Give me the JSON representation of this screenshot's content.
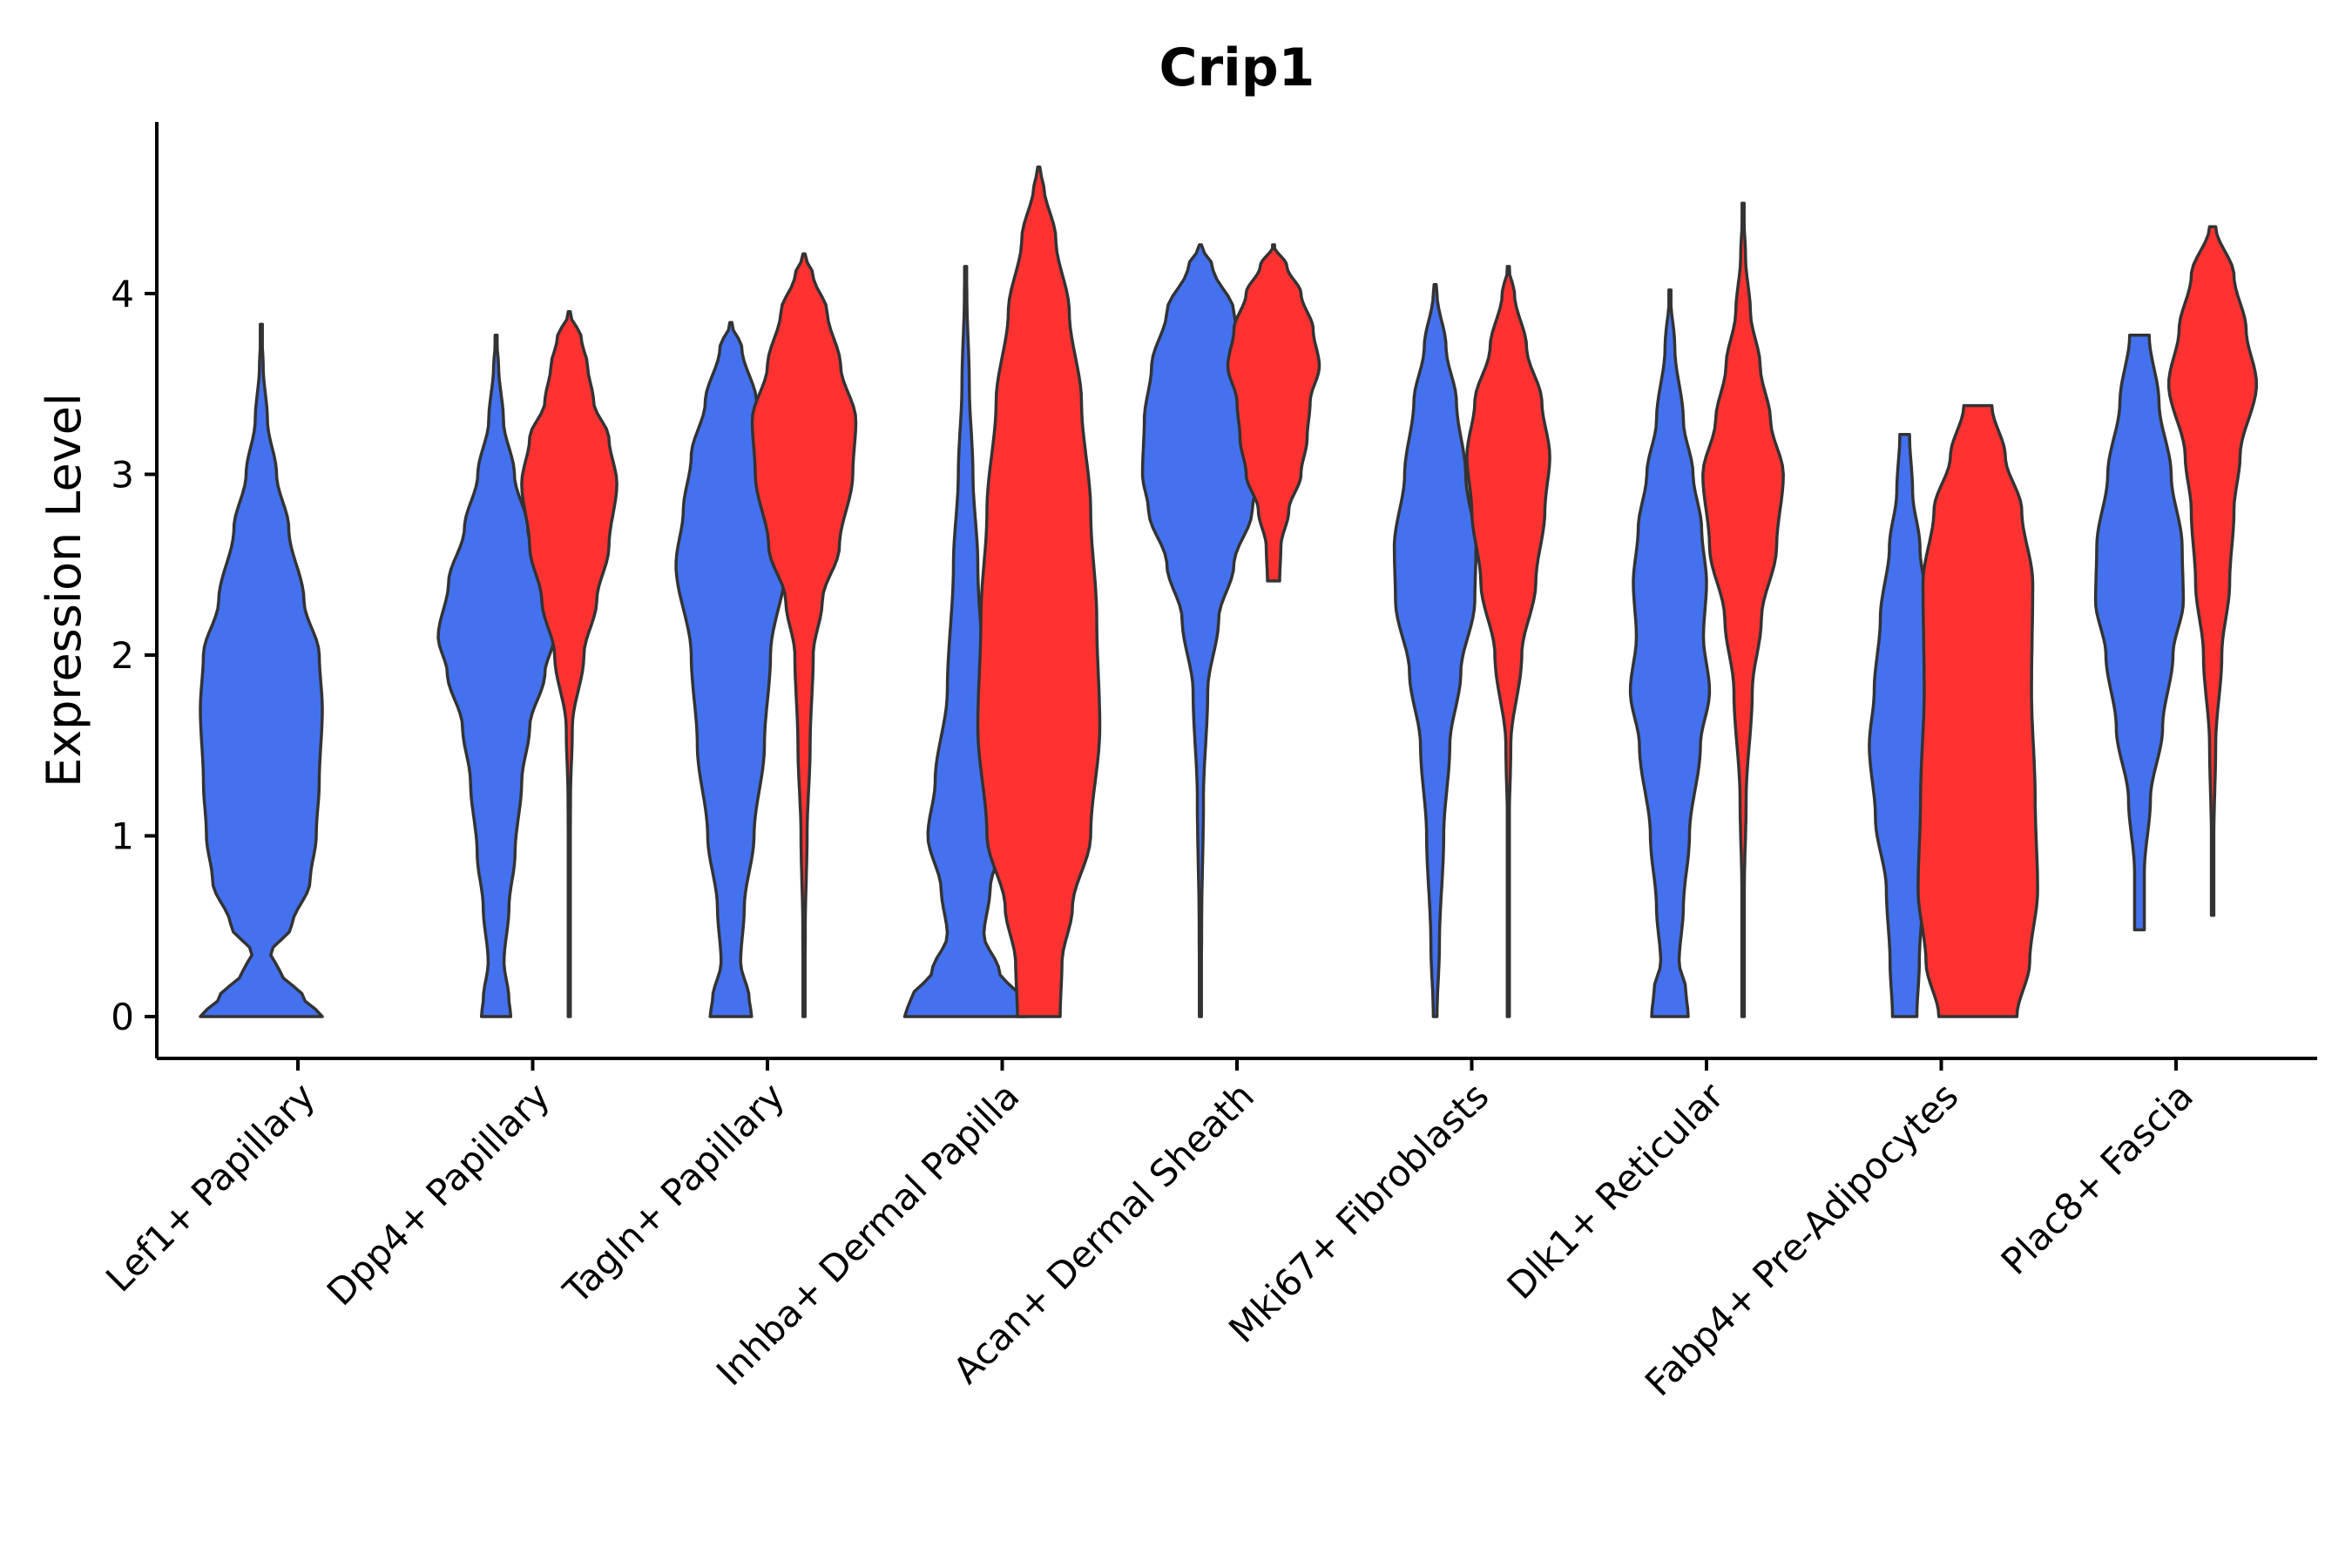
{
  "chart_data": {
    "type": "violin",
    "title": "Crip1",
    "xlabel": "",
    "ylabel": "Expression Level",
    "ylim": [
      -0.23,
      4.95
    ],
    "yticks": [
      0,
      1,
      2,
      3,
      4
    ],
    "grid": false,
    "legend": "none",
    "colors": {
      "group_a": "#4471EE",
      "group_b": "#FF3232",
      "outline": "#333333"
    },
    "categories": [
      "Lef1+ Papillary",
      "Dpp4+ Papillary",
      "Tagln+ Papillary",
      "Inhba+ Dermal Papilla",
      "Acan+ Dermal Sheath",
      "Mki67+ Fibroblasts",
      "Dlk1+ Reticular",
      "Fabp4+ Pre-Adipocytes",
      "Plac8+ Fascia"
    ],
    "series": [
      {
        "name": "Lef1+ Papillary A",
        "category_index": 0,
        "group": "a",
        "min": 0,
        "max": 3.83,
        "profile": [
          [
            0,
            1.0
          ],
          [
            0.1,
            0.7
          ],
          [
            0.25,
            0.3
          ],
          [
            0.35,
            0.15
          ],
          [
            0.5,
            0.5
          ],
          [
            0.75,
            0.8
          ],
          [
            1.0,
            0.9
          ],
          [
            1.3,
            0.95
          ],
          [
            1.7,
            1.0
          ],
          [
            2.0,
            0.95
          ],
          [
            2.3,
            0.7
          ],
          [
            2.7,
            0.45
          ],
          [
            3.0,
            0.25
          ],
          [
            3.3,
            0.1
          ],
          [
            3.6,
            0.03
          ],
          [
            3.83,
            0.0
          ]
        ]
      },
      {
        "name": "Dpp4+ Papillary A",
        "category_index": 1,
        "group": "a",
        "min": 0,
        "max": 3.77,
        "profile": [
          [
            0,
            0.24
          ],
          [
            0.1,
            0.21
          ],
          [
            0.3,
            0.13
          ],
          [
            0.6,
            0.21
          ],
          [
            0.9,
            0.31
          ],
          [
            1.3,
            0.42
          ],
          [
            1.6,
            0.55
          ],
          [
            1.9,
            0.8
          ],
          [
            2.1,
            0.95
          ],
          [
            2.4,
            0.78
          ],
          [
            2.7,
            0.52
          ],
          [
            3.0,
            0.3
          ],
          [
            3.3,
            0.12
          ],
          [
            3.6,
            0.04
          ],
          [
            3.77,
            0.0
          ]
        ]
      },
      {
        "name": "Dpp4+ Papillary B",
        "category_index": 1,
        "group": "b",
        "min": 0,
        "max": 3.9,
        "profile": [
          [
            0,
            0.01
          ],
          [
            0.8,
            0.01
          ],
          [
            1.2,
            0.02
          ],
          [
            1.6,
            0.05
          ],
          [
            2.0,
            0.24
          ],
          [
            2.3,
            0.45
          ],
          [
            2.6,
            0.65
          ],
          [
            2.95,
            0.78
          ],
          [
            3.2,
            0.65
          ],
          [
            3.4,
            0.4
          ],
          [
            3.6,
            0.3
          ],
          [
            3.75,
            0.2
          ],
          [
            3.9,
            0.0
          ]
        ]
      },
      {
        "name": "Tagln+ Papillary A",
        "category_index": 2,
        "group": "a",
        "min": 0,
        "max": 3.84,
        "profile": [
          [
            0,
            0.34
          ],
          [
            0.1,
            0.3
          ],
          [
            0.3,
            0.16
          ],
          [
            0.6,
            0.22
          ],
          [
            1.0,
            0.38
          ],
          [
            1.5,
            0.55
          ],
          [
            2.0,
            0.65
          ],
          [
            2.5,
            0.9
          ],
          [
            2.8,
            0.78
          ],
          [
            3.1,
            0.65
          ],
          [
            3.4,
            0.42
          ],
          [
            3.7,
            0.18
          ],
          [
            3.84,
            0.0
          ]
        ]
      },
      {
        "name": "Tagln+ Papillary B",
        "category_index": 2,
        "group": "b",
        "min": 0,
        "max": 4.22,
        "profile": [
          [
            0,
            0.01
          ],
          [
            0.5,
            0.02
          ],
          [
            1.0,
            0.05
          ],
          [
            1.5,
            0.1
          ],
          [
            2.0,
            0.15
          ],
          [
            2.3,
            0.3
          ],
          [
            2.6,
            0.58
          ],
          [
            3.0,
            0.8
          ],
          [
            3.3,
            0.85
          ],
          [
            3.6,
            0.6
          ],
          [
            3.9,
            0.38
          ],
          [
            4.1,
            0.15
          ],
          [
            4.22,
            0.0
          ]
        ]
      },
      {
        "name": "Inhba+ Dermal Papilla A",
        "category_index": 3,
        "group": "a",
        "min": 0,
        "max": 4.15,
        "profile": [
          [
            0,
            1.0
          ],
          [
            0.1,
            0.9
          ],
          [
            0.25,
            0.55
          ],
          [
            0.45,
            0.3
          ],
          [
            0.7,
            0.4
          ],
          [
            1.0,
            0.62
          ],
          [
            1.3,
            0.5
          ],
          [
            1.8,
            0.3
          ],
          [
            2.5,
            0.2
          ],
          [
            3.0,
            0.12
          ],
          [
            3.5,
            0.06
          ],
          [
            4.0,
            0.02
          ],
          [
            4.15,
            0.0
          ]
        ]
      },
      {
        "name": "Inhba+ Dermal Papilla B",
        "category_index": 3,
        "group": "b",
        "min": 0,
        "max": 4.7,
        "profile": [
          [
            0,
            0.35
          ],
          [
            0.3,
            0.38
          ],
          [
            0.6,
            0.55
          ],
          [
            1.0,
            0.85
          ],
          [
            1.6,
            1.0
          ],
          [
            2.2,
            0.95
          ],
          [
            2.8,
            0.85
          ],
          [
            3.4,
            0.7
          ],
          [
            3.9,
            0.5
          ],
          [
            4.3,
            0.28
          ],
          [
            4.6,
            0.08
          ],
          [
            4.7,
            0.0
          ]
        ]
      },
      {
        "name": "Acan+ Dermal Sheath A",
        "category_index": 4,
        "group": "a",
        "min": 0,
        "max": 4.27,
        "profile": [
          [
            0,
            0.01
          ],
          [
            0.5,
            0.02
          ],
          [
            1.2,
            0.05
          ],
          [
            1.8,
            0.12
          ],
          [
            2.2,
            0.3
          ],
          [
            2.5,
            0.55
          ],
          [
            2.8,
            0.85
          ],
          [
            3.0,
            0.95
          ],
          [
            3.3,
            0.92
          ],
          [
            3.6,
            0.8
          ],
          [
            3.9,
            0.55
          ],
          [
            4.15,
            0.2
          ],
          [
            4.27,
            0.0
          ]
        ]
      },
      {
        "name": "Acan+ Dermal Sheath B",
        "category_index": 4,
        "group": "b",
        "min": 2.41,
        "max": 4.27,
        "profile": [
          [
            2.41,
            0.1
          ],
          [
            2.6,
            0.12
          ],
          [
            2.8,
            0.25
          ],
          [
            3.0,
            0.45
          ],
          [
            3.2,
            0.55
          ],
          [
            3.4,
            0.6
          ],
          [
            3.6,
            0.75
          ],
          [
            3.8,
            0.65
          ],
          [
            4.0,
            0.45
          ],
          [
            4.15,
            0.22
          ],
          [
            4.27,
            0.0
          ]
        ]
      },
      {
        "name": "Mki67+ Fibroblasts A",
        "category_index": 5,
        "group": "a",
        "min": 0,
        "max": 4.05,
        "profile": [
          [
            0,
            0.03
          ],
          [
            0.4,
            0.07
          ],
          [
            1.0,
            0.14
          ],
          [
            1.5,
            0.24
          ],
          [
            1.9,
            0.42
          ],
          [
            2.3,
            0.65
          ],
          [
            2.6,
            0.67
          ],
          [
            3.0,
            0.5
          ],
          [
            3.4,
            0.35
          ],
          [
            3.7,
            0.18
          ],
          [
            4.0,
            0.03
          ],
          [
            4.05,
            0.0
          ]
        ]
      },
      {
        "name": "Mki67+ Fibroblasts B",
        "category_index": 5,
        "group": "b",
        "min": 0,
        "max": 4.15,
        "profile": [
          [
            0,
            0.01
          ],
          [
            1.0,
            0.01
          ],
          [
            1.5,
            0.04
          ],
          [
            2.0,
            0.22
          ],
          [
            2.4,
            0.45
          ],
          [
            2.8,
            0.6
          ],
          [
            3.1,
            0.68
          ],
          [
            3.4,
            0.55
          ],
          [
            3.7,
            0.3
          ],
          [
            4.0,
            0.1
          ],
          [
            4.15,
            0.0
          ]
        ]
      },
      {
        "name": "Dlk1+ Reticular A",
        "category_index": 6,
        "group": "a",
        "min": 0,
        "max": 4.02,
        "profile": [
          [
            0,
            0.3
          ],
          [
            0.15,
            0.26
          ],
          [
            0.3,
            0.15
          ],
          [
            0.6,
            0.22
          ],
          [
            1.0,
            0.32
          ],
          [
            1.5,
            0.5
          ],
          [
            1.8,
            0.65
          ],
          [
            2.1,
            0.55
          ],
          [
            2.4,
            0.6
          ],
          [
            2.7,
            0.52
          ],
          [
            3.0,
            0.38
          ],
          [
            3.3,
            0.22
          ],
          [
            3.7,
            0.08
          ],
          [
            4.02,
            0.0
          ]
        ]
      },
      {
        "name": "Dlk1+ Reticular B",
        "category_index": 6,
        "group": "b",
        "min": 0,
        "max": 4.5,
        "profile": [
          [
            0,
            0.02
          ],
          [
            0.7,
            0.02
          ],
          [
            1.2,
            0.05
          ],
          [
            1.8,
            0.15
          ],
          [
            2.2,
            0.3
          ],
          [
            2.6,
            0.55
          ],
          [
            3.0,
            0.66
          ],
          [
            3.3,
            0.45
          ],
          [
            3.6,
            0.28
          ],
          [
            3.9,
            0.12
          ],
          [
            4.2,
            0.04
          ],
          [
            4.5,
            0.0
          ]
        ]
      },
      {
        "name": "Fabp4+ Pre-Adipocytes A",
        "category_index": 7,
        "group": "a",
        "min": 0,
        "max": 3.22,
        "profile": [
          [
            0,
            0.2
          ],
          [
            0.3,
            0.24
          ],
          [
            0.7,
            0.3
          ],
          [
            1.1,
            0.48
          ],
          [
            1.5,
            0.58
          ],
          [
            1.8,
            0.5
          ],
          [
            2.2,
            0.4
          ],
          [
            2.6,
            0.25
          ],
          [
            2.9,
            0.13
          ],
          [
            3.22,
            0.08
          ]
        ]
      },
      {
        "name": "Fabp4+ Pre-Adipocytes B",
        "category_index": 7,
        "group": "b",
        "min": 0,
        "max": 3.38,
        "profile": [
          [
            0,
            0.64
          ],
          [
            0.3,
            0.85
          ],
          [
            0.7,
            0.98
          ],
          [
            1.2,
            0.94
          ],
          [
            1.8,
            0.88
          ],
          [
            2.4,
            0.9
          ],
          [
            2.8,
            0.72
          ],
          [
            3.1,
            0.45
          ],
          [
            3.38,
            0.23
          ]
        ]
      },
      {
        "name": "Plac8+ Fascia A",
        "category_index": 8,
        "group": "a",
        "min": 0.48,
        "max": 3.77,
        "profile": [
          [
            0.48,
            0.08
          ],
          [
            0.8,
            0.08
          ],
          [
            1.2,
            0.18
          ],
          [
            1.6,
            0.38
          ],
          [
            2.0,
            0.55
          ],
          [
            2.3,
            0.72
          ],
          [
            2.6,
            0.7
          ],
          [
            3.0,
            0.52
          ],
          [
            3.4,
            0.32
          ],
          [
            3.77,
            0.16
          ]
        ]
      },
      {
        "name": "Plac8+ Fascia B",
        "category_index": 8,
        "group": "b",
        "min": 0.56,
        "max": 4.37,
        "profile": [
          [
            0.56,
            0.02
          ],
          [
            1.0,
            0.02
          ],
          [
            1.5,
            0.05
          ],
          [
            2.0,
            0.15
          ],
          [
            2.4,
            0.28
          ],
          [
            2.8,
            0.35
          ],
          [
            3.1,
            0.45
          ],
          [
            3.5,
            0.72
          ],
          [
            3.8,
            0.55
          ],
          [
            4.1,
            0.35
          ],
          [
            4.37,
            0.05
          ]
        ]
      }
    ]
  }
}
